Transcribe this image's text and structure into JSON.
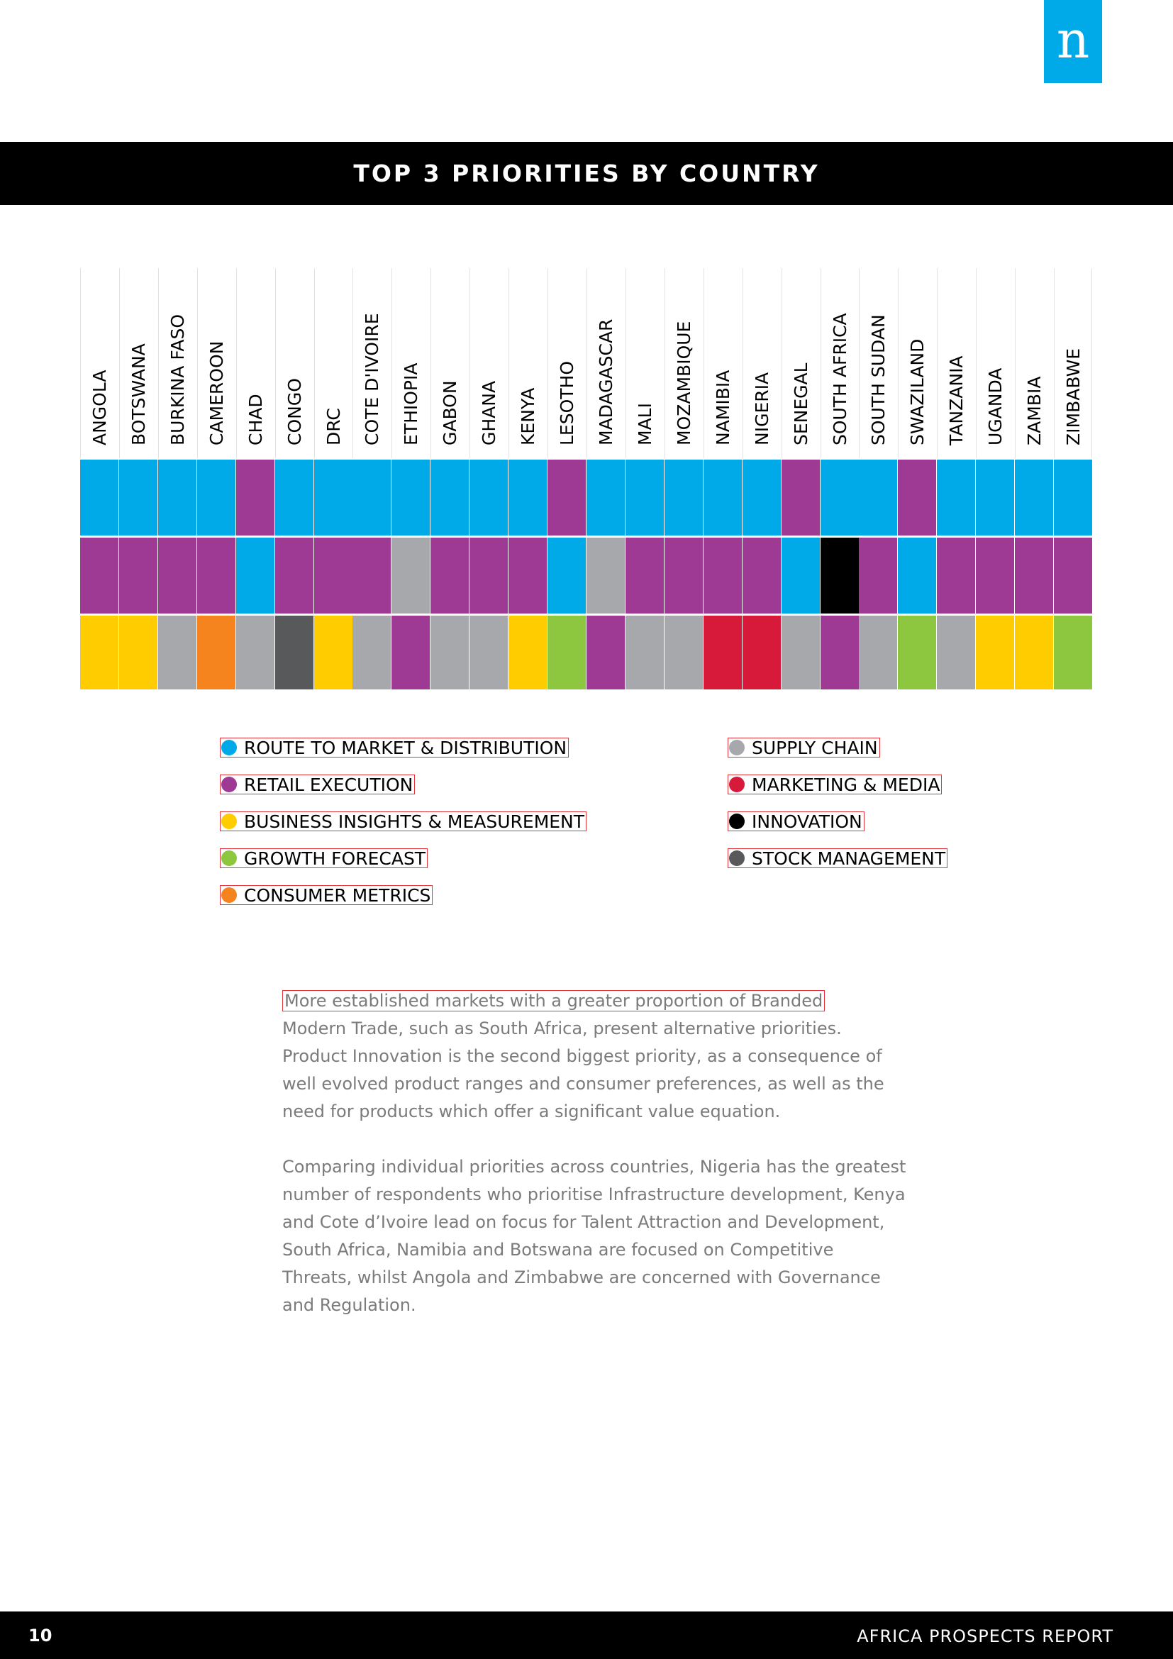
{
  "header": {
    "logo_text": "n"
  },
  "title": "TOP 3 PRIORITIES BY COUNTRY",
  "chart_data": {
    "type": "table",
    "countries": [
      "ANGOLA",
      "BOTSWANA",
      "BURKINA FASO",
      "CAMEROON",
      "CHAD",
      "CONGO",
      "DRC",
      "COTE D'IVOIRE",
      "ETHIOPIA",
      "GABON",
      "GHANA",
      "KENYA",
      "LESOTHO",
      "MADAGASCAR",
      "MALI",
      "MOZAMBIQUE",
      "NAMIBIA",
      "NIGERIA",
      "SENEGAL",
      "SOUTH AFRICA",
      "SOUTH SUDAN",
      "SWAZILAND",
      "TANZANIA",
      "UGANDA",
      "ZAMBIA",
      "ZIMBABWE"
    ],
    "priority_1": [
      "route",
      "route",
      "route",
      "route",
      "retail",
      "route",
      "route",
      "route",
      "route",
      "route",
      "route",
      "route",
      "retail",
      "route",
      "route",
      "route",
      "route",
      "route",
      "retail",
      "route",
      "route",
      "retail",
      "route",
      "route",
      "route",
      "route"
    ],
    "priority_2": [
      "retail",
      "retail",
      "retail",
      "retail",
      "route",
      "retail",
      "retail",
      "retail",
      "supply",
      "retail",
      "retail",
      "retail",
      "route",
      "supply",
      "retail",
      "retail",
      "retail",
      "retail",
      "route",
      "innovation",
      "retail",
      "route",
      "retail",
      "retail",
      "retail",
      "retail"
    ],
    "priority_3": [
      "insights",
      "insights",
      "supply",
      "consumer",
      "supply",
      "stock",
      "insights",
      "supply",
      "retail",
      "supply",
      "supply",
      "insights",
      "growth",
      "retail",
      "supply",
      "supply",
      "marketing",
      "marketing",
      "supply",
      "retail",
      "supply",
      "growth",
      "supply",
      "insights",
      "insights",
      "growth"
    ]
  },
  "legend": [
    {
      "key": "route",
      "label": "ROUTE TO MARKET & DISTRIBUTION",
      "color": "#00a9e8"
    },
    {
      "key": "retail",
      "label": "RETAIL EXECUTION",
      "color": "#9e3994"
    },
    {
      "key": "insights",
      "label": "BUSINESS INSIGHTS & MEASUREMENT",
      "color": "#ffcc00"
    },
    {
      "key": "growth",
      "label": "GROWTH FORECAST",
      "color": "#8dc63f"
    },
    {
      "key": "consumer",
      "label": "CONSUMER METRICS",
      "color": "#f5841f"
    },
    {
      "key": "supply",
      "label": "SUPPLY CHAIN",
      "color": "#a6a8ab"
    },
    {
      "key": "marketing",
      "label": "MARKETING & MEDIA",
      "color": "#d7193a"
    },
    {
      "key": "innovation",
      "label": "INNOVATION",
      "color": "#000000"
    },
    {
      "key": "stock",
      "label": "STOCK MANAGEMENT",
      "color": "#58595b"
    }
  ],
  "body": {
    "p1_first_line": "More established markets with a greater proportion of Branded",
    "p1_rest": "Modern Trade, such as South Africa, present alternative priorities. Product Innovation is the second biggest priority, as a consequence of well evolved product ranges and consumer preferences, as well as the need for products which offer a significant value equation.",
    "p2": "Comparing individual priorities across countries, Nigeria has the greatest number of respondents who prioritise Infrastructure development, Kenya and Cote d’Ivoire lead on focus for Talent Attraction and Development, South Africa, Namibia and Botswana are focused on Competitive Threats, whilst Angola and Zimbabwe are concerned with Governance and Regulation."
  },
  "footer": {
    "page_number": "10",
    "report_name": "AFRICA PROSPECTS REPORT"
  }
}
